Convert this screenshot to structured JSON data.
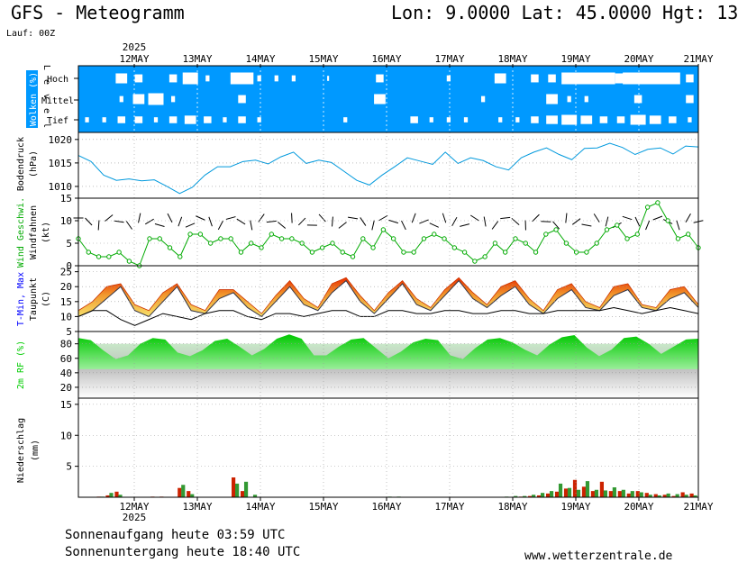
{
  "header": {
    "title": "GFS - Meteogramm",
    "coords": "Lon: 9.0000 Lat: 45.0000 Hgt: 13",
    "run": "Lauf: 00Z"
  },
  "footer": {
    "sunrise": "Sonnenaufgang heute 03:59 UTC",
    "sunset": "Sonnenuntergang heute 18:40 UTC",
    "source": "www.wetterzentrale.de"
  },
  "colors": {
    "cloud_bg": "#0099ff",
    "pressure": "#0099dd",
    "wind": "#00aa00",
    "tmax": "#ff3300",
    "tmin": "#0000ff",
    "rh": "#00cc00",
    "precip_a": "#cc2200",
    "precip_b": "#339933"
  },
  "chart_data": {
    "type": "line",
    "x_axis": {
      "start": "11 MAY 2025 00Z",
      "step_hours": 6,
      "year_label": "2025",
      "day_labels": [
        "12MAY",
        "13MAY",
        "14MAY",
        "15MAY",
        "16MAY",
        "17MAY",
        "18MAY",
        "19MAY",
        "20MAY",
        "21MAY"
      ]
    },
    "panels": [
      {
        "name": "clouds",
        "ylabel": "Wolken (%)",
        "ylabel2": "L e v e l",
        "levels": [
          "Hoch",
          "Mittel",
          "Tief"
        ],
        "cover_pct": {
          "hoch": [
            0,
            0,
            30,
            20,
            0,
            20,
            40,
            10,
            0,
            60,
            10,
            10,
            10,
            0,
            5,
            0,
            0,
            20,
            0,
            0,
            0,
            10,
            0,
            0,
            30,
            0,
            20,
            20,
            40,
            60,
            60,
            30,
            80,
            60,
            40,
            20
          ],
          "mittel": [
            0,
            0,
            10,
            30,
            40,
            10,
            0,
            0,
            0,
            20,
            0,
            0,
            0,
            0,
            0,
            0,
            0,
            30,
            0,
            0,
            0,
            0,
            0,
            10,
            0,
            0,
            0,
            30,
            10,
            10,
            0,
            0,
            20,
            0,
            0,
            20
          ],
          "tief": [
            10,
            10,
            20,
            20,
            10,
            20,
            30,
            20,
            10,
            20,
            10,
            0,
            0,
            0,
            0,
            10,
            0,
            0,
            0,
            20,
            10,
            10,
            10,
            0,
            10,
            10,
            20,
            30,
            40,
            30,
            20,
            20,
            40,
            30,
            20,
            10
          ]
        }
      },
      {
        "name": "pressure",
        "ylabel": "Bodendruck",
        "ylabel2": "(hPa)",
        "ylim": [
          1007.5,
          1021.5
        ],
        "yticks": [
          1010,
          1015,
          1020
        ],
        "values": [
          1016.6,
          1015.3,
          1012.4,
          1011.3,
          1011.6,
          1011.2,
          1011.4,
          1010.0,
          1008.5,
          1009.8,
          1012.4,
          1014.2,
          1014.2,
          1015.3,
          1015.6,
          1014.8,
          1016.3,
          1017.3,
          1014.9,
          1015.6,
          1015.1,
          1013.2,
          1011.3,
          1010.3,
          1012.4,
          1014.2,
          1016.1,
          1015.4,
          1014.7,
          1017.3,
          1014.9,
          1016.1,
          1015.5,
          1014.2,
          1013.5,
          1016.1,
          1017.3,
          1018.2,
          1016.8,
          1015.7,
          1018.1,
          1018.2,
          1019.2,
          1018.3,
          1016.8,
          1017.9,
          1018.2,
          1016.9,
          1018.6,
          1018.4
        ]
      },
      {
        "name": "wind",
        "ylabel": "Wind Geschwi.",
        "ylabel2": "Windfahnen",
        "ylabel3": "(kt)",
        "ylim": [
          0,
          15
        ],
        "yticks": [
          0,
          5,
          10,
          15
        ],
        "values": [
          6,
          3,
          2,
          2,
          3,
          1,
          0,
          6,
          6,
          4,
          2,
          7,
          7,
          5,
          6,
          6,
          3,
          5,
          4,
          7,
          6,
          6,
          5,
          3,
          4,
          5,
          3,
          2,
          6,
          4,
          8,
          6,
          3,
          3,
          6,
          7,
          6,
          4,
          3,
          1,
          2,
          5,
          3,
          6,
          5,
          3,
          7,
          8,
          5,
          3,
          3,
          5,
          8,
          9,
          6,
          7,
          13,
          14,
          10,
          6,
          7,
          4
        ]
      },
      {
        "name": "temperature",
        "ylabel": "T-Min, Max",
        "ylabel2": "Taupunkt",
        "ylabel3": "(C)",
        "ylim": [
          5,
          27
        ],
        "yticks": [
          5,
          10,
          15,
          20,
          25
        ],
        "tmax": [
          12,
          15,
          20,
          21,
          14,
          12,
          18,
          21,
          14,
          12,
          19,
          19,
          15,
          11,
          17,
          22,
          16,
          13,
          21,
          23,
          17,
          12,
          18,
          22,
          16,
          13,
          19,
          23,
          18,
          14,
          20,
          22,
          16,
          12,
          19,
          21,
          15,
          13,
          20,
          21,
          14,
          13,
          19,
          20,
          14
        ],
        "tmin": [
          10,
          12,
          16,
          20,
          12,
          10,
          15,
          20,
          12,
          11,
          16,
          18,
          13,
          10,
          15,
          20,
          14,
          12,
          18,
          22,
          15,
          11,
          16,
          21,
          14,
          12,
          17,
          22,
          16,
          13,
          17,
          20,
          14,
          11,
          16,
          19,
          13,
          12,
          17,
          19,
          13,
          12,
          16,
          18,
          13
        ],
        "dewpoint": [
          10,
          12,
          12,
          9,
          7,
          9,
          11,
          10,
          9,
          11,
          12,
          12,
          10,
          9,
          11,
          11,
          10,
          11,
          12,
          12,
          10,
          10,
          12,
          12,
          11,
          11,
          12,
          12,
          11,
          11,
          12,
          12,
          11,
          11,
          12,
          12,
          12,
          12,
          13,
          12,
          11,
          12,
          13,
          12,
          11
        ]
      },
      {
        "name": "rh",
        "ylabel": "2m RF (%)",
        "ylim": [
          5,
          97
        ],
        "yticks": [
          20,
          40,
          60,
          80
        ],
        "values": [
          88,
          85,
          71,
          59,
          64,
          80,
          88,
          86,
          68,
          63,
          71,
          84,
          87,
          76,
          64,
          73,
          87,
          93,
          87,
          64,
          64,
          76,
          86,
          88,
          74,
          60,
          69,
          82,
          87,
          85,
          64,
          59,
          74,
          86,
          88,
          82,
          72,
          64,
          79,
          89,
          92,
          75,
          63,
          72,
          88,
          90,
          80,
          66,
          76,
          86,
          87
        ]
      },
      {
        "name": "precip",
        "ylabel": "Niederschlag",
        "ylabel2": "(mm)",
        "ylim": [
          0,
          16
        ],
        "yticks": [
          5,
          10,
          15
        ],
        "series_a": [
          0,
          0,
          0.1,
          0.3,
          0.9,
          0,
          0,
          0,
          0.1,
          0.1,
          0,
          1.5,
          1.0,
          0,
          0,
          0,
          0,
          3.2,
          1.0,
          0,
          0,
          0,
          0,
          0,
          0,
          0,
          0,
          0,
          0,
          0,
          0,
          0,
          0,
          0,
          0,
          0,
          0,
          0,
          0,
          0,
          0,
          0,
          0,
          0,
          0,
          0,
          0,
          0,
          0,
          0.1,
          0.2,
          0.3,
          0.6,
          0.9,
          1.4,
          2.8,
          1.7,
          1.0,
          2.5,
          1.0,
          1.0,
          0.6,
          1.0,
          0.7,
          0.5,
          0.4,
          0.2,
          0.8,
          0.6
        ],
        "series_b": [
          0,
          0,
          0.1,
          0.7,
          0.4,
          0,
          0,
          0,
          0,
          0,
          0,
          2.0,
          0.5,
          0,
          0,
          0,
          0,
          2.2,
          2.5,
          0.4,
          0,
          0,
          0,
          0,
          0,
          0,
          0,
          0,
          0,
          0,
          0,
          0,
          0,
          0,
          0.1,
          0.1,
          0,
          0,
          0,
          0,
          0,
          0,
          0,
          0,
          0,
          0,
          0,
          0.1,
          0.2,
          0.2,
          0.4,
          0.7,
          1.0,
          2.2,
          1.5,
          1.2,
          2.6,
          1.2,
          1.1,
          1.6,
          1.2,
          1.0,
          0.8,
          0.4,
          0.3,
          0.6,
          0.5,
          0.4,
          0.3
        ]
      }
    ]
  }
}
